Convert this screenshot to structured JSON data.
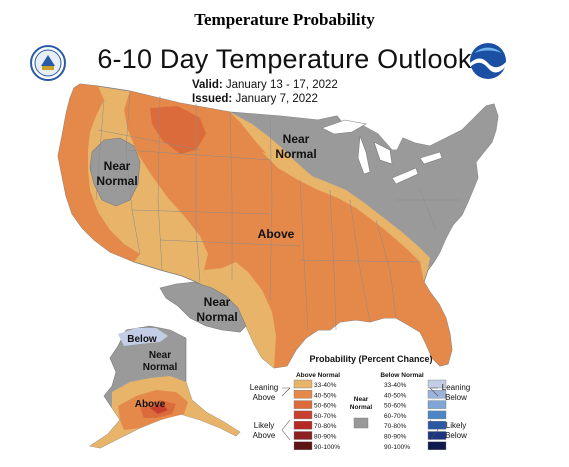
{
  "page_title": "Temperature Probability",
  "map_title": "6-10 Day Temperature Outlook",
  "valid_label": "Valid:",
  "valid_dates": "January 13 - 17, 2022",
  "issued_label": "Issued:",
  "issued_date": "January 7, 2022",
  "regions": {
    "west_near_normal": [
      "Near",
      "Normal"
    ],
    "north_near_normal": [
      "Near",
      "Normal"
    ],
    "south_near_normal": [
      "Near",
      "Normal"
    ],
    "central_above": "Above",
    "alaska_below": "Below",
    "alaska_near_normal": [
      "Near",
      "Normal"
    ],
    "alaska_above": "Above"
  },
  "legend": {
    "title": "Probability (Percent Chance)",
    "above_header": "Above Normal",
    "below_header": "Below Normal",
    "near_normal": [
      "Near",
      "Normal"
    ],
    "leaning_above": [
      "Leaning",
      "Above"
    ],
    "likely_above": [
      "Likely",
      "Above"
    ],
    "leaning_below": [
      "Leaning",
      "Below"
    ],
    "likely_below": [
      "Likely",
      "Below"
    ],
    "ranges": [
      "33-40%",
      "40-50%",
      "50-60%",
      "60-70%",
      "70-80%",
      "80-90%",
      "90-100%"
    ],
    "above_colors": [
      "#e8b46a",
      "#e5894a",
      "#dc6b3b",
      "#c93f2f",
      "#b52a25",
      "#8c2020",
      "#5e1414"
    ],
    "below_colors": [
      "#c3cde6",
      "#9cb3db",
      "#7ea5d6",
      "#4d86c6",
      "#2a5aa6",
      "#1d347f",
      "#0f1a4f"
    ],
    "near_normal_color": "#999999"
  },
  "colors": {
    "above_33_40": "#e8b46a",
    "above_40_50": "#e5894a",
    "above_50_60": "#dc6b3b",
    "near_normal": "#9a9a9a",
    "below_33_40": "#c3cde6"
  },
  "logos": [
    "doc-seal",
    "noaa-logo"
  ]
}
